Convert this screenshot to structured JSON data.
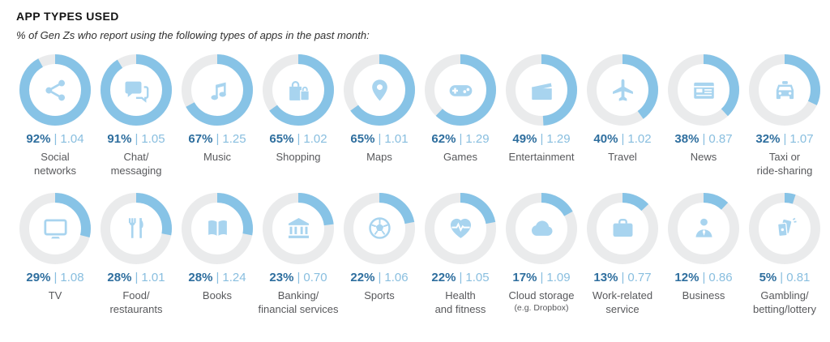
{
  "header": {
    "title": "APP TYPES USED",
    "subtitle": "% of Gen Zs who report using the following types of apps in the past month:"
  },
  "colors": {
    "arc": "#87C3E6",
    "track": "#EAEBEC",
    "icon": "#A8D4EF",
    "percent_text": "#2E6E9E",
    "index_text": "#88BEDF",
    "label_text": "#58595C"
  },
  "chart_data": {
    "type": "donut-grid",
    "title": "APP TYPES USED",
    "subtitle": "% of Gen Zs who report using the following types of apps in the past month:",
    "value_unit": "%",
    "separator": "|",
    "arc_start": "12 o'clock, clockwise",
    "columns_per_row": 10,
    "items": [
      {
        "label": "Social\nnetworks",
        "full_label": "Social networks",
        "percent": 92,
        "index": "1.04",
        "icon": "share-icon"
      },
      {
        "label": "Chat/\nmessaging",
        "full_label": "Chat/messaging",
        "percent": 91,
        "index": "1.05",
        "icon": "chat-icon"
      },
      {
        "label": "Music",
        "full_label": "Music",
        "percent": 67,
        "index": "1.25",
        "icon": "music-note-icon"
      },
      {
        "label": "Shopping",
        "full_label": "Shopping",
        "percent": 65,
        "index": "1.02",
        "icon": "shopping-bags-icon"
      },
      {
        "label": "Maps",
        "full_label": "Maps",
        "percent": 65,
        "index": "1.01",
        "icon": "map-pin-icon"
      },
      {
        "label": "Games",
        "full_label": "Games",
        "percent": 62,
        "index": "1.29",
        "icon": "game-controller-icon"
      },
      {
        "label": "Entertainment",
        "full_label": "Entertainment",
        "percent": 49,
        "index": "1.29",
        "icon": "clapperboard-icon"
      },
      {
        "label": "Travel",
        "full_label": "Travel",
        "percent": 40,
        "index": "1.02",
        "icon": "airplane-icon"
      },
      {
        "label": "News",
        "full_label": "News",
        "percent": 38,
        "index": "0.87",
        "icon": "newspaper-icon"
      },
      {
        "label": "Taxi or\nride-sharing",
        "full_label": "Taxi or ride-sharing",
        "percent": 32,
        "index": "1.07",
        "icon": "taxi-icon"
      },
      {
        "label": "TV",
        "full_label": "TV",
        "percent": 29,
        "index": "1.08",
        "icon": "tv-icon"
      },
      {
        "label": "Food/\nrestaurants",
        "full_label": "Food/restaurants",
        "percent": 28,
        "index": "1.01",
        "icon": "fork-knife-icon"
      },
      {
        "label": "Books",
        "full_label": "Books",
        "percent": 28,
        "index": "1.24",
        "icon": "open-book-icon"
      },
      {
        "label": "Banking/\nfinancial services",
        "full_label": "Banking/financial services",
        "percent": 23,
        "index": "0.70",
        "icon": "bank-icon"
      },
      {
        "label": "Sports",
        "full_label": "Sports",
        "percent": 22,
        "index": "1.06",
        "icon": "soccer-ball-icon"
      },
      {
        "label": "Health\nand fitness",
        "full_label": "Health and fitness",
        "percent": 22,
        "index": "1.05",
        "icon": "heart-pulse-icon"
      },
      {
        "label": "Cloud storage",
        "sublabel": "(e.g. Dropbox)",
        "full_label": "Cloud storage (e.g. Dropbox)",
        "percent": 17,
        "index": "1.09",
        "icon": "cloud-icon"
      },
      {
        "label": "Work-related\nservice",
        "full_label": "Work-related service",
        "percent": 13,
        "index": "0.77",
        "icon": "briefcase-icon"
      },
      {
        "label": "Business",
        "full_label": "Business",
        "percent": 12,
        "index": "0.86",
        "icon": "business-person-icon"
      },
      {
        "label": "Gambling/\nbetting/lottery",
        "full_label": "Gambling/betting/lottery",
        "percent": 5,
        "index": "0.81",
        "icon": "playing-cards-icon"
      }
    ]
  }
}
